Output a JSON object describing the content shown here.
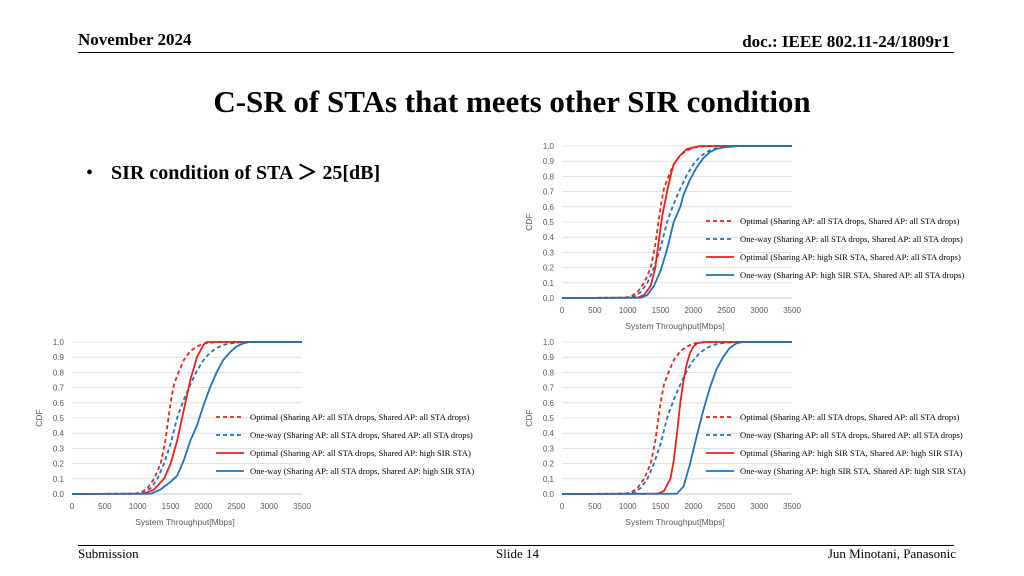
{
  "header": {
    "date": "November 2024",
    "doc": "doc.: IEEE 802.11-24/1809r1"
  },
  "slide_title": "C-SR of STAs that meets other SIR condition",
  "bullet": {
    "glyph": "•",
    "text": "SIR condition of STA ＞ 25[dB]"
  },
  "footer": {
    "left": "Submission",
    "center": "Slide 14",
    "right": "Jun Minotani, Panasonic"
  },
  "colors": {
    "optimal": "#e8201e",
    "oneway": "#1f72b8"
  },
  "chart_data": [
    {
      "type": "line",
      "xlabel": "System Throughput[Mbps]",
      "ylabel": "CDF",
      "xlim": [
        0,
        3500
      ],
      "ylim": [
        0,
        1
      ],
      "xticks": [
        "0",
        "500",
        "1000",
        "1500",
        "2000",
        "2500",
        "3000",
        "3500"
      ],
      "yticks": [
        "0.0",
        "0.1",
        "0.2",
        "0.3",
        "0.4",
        "0.5",
        "0.6",
        "0.7",
        "0.8",
        "0.9",
        "1.0"
      ],
      "grid": "horizontal",
      "legend": "right",
      "series": [
        {
          "name": "Optimal (Sharing AP: all STA drops, Shared AP: all STA drops)",
          "color": "#e8201e",
          "dash": true,
          "x": [
            0,
            950,
            1050,
            1150,
            1250,
            1350,
            1420,
            1500,
            1550,
            1620,
            1700,
            1800,
            1900,
            2000,
            2100,
            2200,
            3500
          ],
          "y": [
            0,
            0.002,
            0.01,
            0.04,
            0.1,
            0.2,
            0.35,
            0.6,
            0.72,
            0.8,
            0.88,
            0.94,
            0.97,
            0.99,
            0.995,
            1.0,
            1.0
          ]
        },
        {
          "name": "One-way (Sharing AP: all STA drops, Shared AP: all STA drops)",
          "color": "#1f72b8",
          "dash": true,
          "x": [
            0,
            1000,
            1100,
            1200,
            1300,
            1400,
            1500,
            1600,
            1700,
            1800,
            1900,
            2000,
            2100,
            2200,
            2300,
            2400,
            2600,
            3500
          ],
          "y": [
            0,
            0.002,
            0.01,
            0.04,
            0.1,
            0.2,
            0.33,
            0.5,
            0.62,
            0.72,
            0.81,
            0.88,
            0.93,
            0.96,
            0.98,
            0.99,
            1.0,
            1.0
          ]
        },
        {
          "name": "Optimal (Sharing AP: high SIR STA, Shared AP: all STA drops)",
          "color": "#e8201e",
          "dash": false,
          "x": [
            0,
            1150,
            1250,
            1350,
            1420,
            1480,
            1530,
            1600,
            1650,
            1700,
            1800,
            1900,
            2000,
            2100,
            3500
          ],
          "y": [
            0,
            0.002,
            0.02,
            0.08,
            0.2,
            0.4,
            0.55,
            0.7,
            0.8,
            0.88,
            0.94,
            0.98,
            0.99,
            1.0,
            1.0
          ]
        },
        {
          "name": "One-way (Sharing AP: high SIR STA, Shared AP: all STA drops)",
          "color": "#1f72b8",
          "dash": false,
          "x": [
            0,
            1200,
            1300,
            1400,
            1500,
            1600,
            1700,
            1800,
            1850,
            1950,
            2050,
            2150,
            2250,
            2350,
            2450,
            2550,
            2700,
            3500
          ],
          "y": [
            0,
            0.002,
            0.02,
            0.08,
            0.18,
            0.32,
            0.5,
            0.6,
            0.68,
            0.78,
            0.86,
            0.92,
            0.96,
            0.98,
            0.99,
            0.995,
            1.0,
            1.0
          ]
        }
      ]
    },
    {
      "type": "line",
      "xlabel": "System Throughput[Mbps]",
      "ylabel": "CDF",
      "xlim": [
        0,
        3500
      ],
      "ylim": [
        0,
        1
      ],
      "xticks": [
        "0",
        "500",
        "1000",
        "1500",
        "2000",
        "2500",
        "3000",
        "3500"
      ],
      "yticks": [
        "0.0",
        "0.1",
        "0.2",
        "0.3",
        "0.4",
        "0.5",
        "0.6",
        "0.7",
        "0.8",
        "0.9",
        "1.0"
      ],
      "grid": "horizontal",
      "legend": "right",
      "series": [
        {
          "name": "Optimal (Sharing AP: all STA drops, Shared AP: all STA drops)",
          "color": "#e8201e",
          "dash": true,
          "x": [
            0,
            950,
            1050,
            1150,
            1250,
            1350,
            1420,
            1500,
            1550,
            1620,
            1700,
            1800,
            1900,
            2000,
            2100,
            2200,
            3500
          ],
          "y": [
            0,
            0.002,
            0.01,
            0.04,
            0.1,
            0.2,
            0.35,
            0.6,
            0.72,
            0.8,
            0.88,
            0.94,
            0.97,
            0.99,
            0.995,
            1.0,
            1.0
          ]
        },
        {
          "name": "One-way (Sharing AP: all STA drops, Shared AP: all STA drops)",
          "color": "#1f72b8",
          "dash": true,
          "x": [
            0,
            1000,
            1100,
            1200,
            1300,
            1400,
            1500,
            1600,
            1700,
            1800,
            1900,
            2000,
            2100,
            2200,
            2300,
            2400,
            2600,
            3500
          ],
          "y": [
            0,
            0.002,
            0.01,
            0.04,
            0.1,
            0.2,
            0.33,
            0.5,
            0.62,
            0.72,
            0.81,
            0.88,
            0.93,
            0.96,
            0.98,
            0.99,
            1.0,
            1.0
          ]
        },
        {
          "name": "Optimal (Sharing AP: all STA drops, Shared AP: high SIR STA)",
          "color": "#e8201e",
          "dash": false,
          "x": [
            0,
            1100,
            1250,
            1400,
            1500,
            1600,
            1700,
            1800,
            1900,
            2000,
            2050,
            3500
          ],
          "y": [
            0,
            0.002,
            0.03,
            0.1,
            0.2,
            0.35,
            0.55,
            0.75,
            0.9,
            0.98,
            1.0,
            1.0
          ]
        },
        {
          "name": "One-way (Sharing AP: all STA drops, Shared AP: high SIR STA)",
          "color": "#1f72b8",
          "dash": false,
          "x": [
            0,
            1200,
            1350,
            1500,
            1600,
            1700,
            1800,
            1900,
            2000,
            2100,
            2200,
            2300,
            2400,
            2500,
            2600,
            2700,
            3500
          ],
          "y": [
            0,
            0.002,
            0.03,
            0.08,
            0.12,
            0.22,
            0.35,
            0.45,
            0.58,
            0.7,
            0.8,
            0.88,
            0.93,
            0.97,
            0.99,
            1.0,
            1.0
          ]
        }
      ]
    },
    {
      "type": "line",
      "xlabel": "System Throughput[Mbps]",
      "ylabel": "CDF",
      "xlim": [
        0,
        3500
      ],
      "ylim": [
        0,
        1
      ],
      "xticks": [
        "0",
        "500",
        "1000",
        "1500",
        "2000",
        "2500",
        "3000",
        "3500"
      ],
      "yticks": [
        "0.0",
        "0.1",
        "0.2",
        "0.3",
        "0.4",
        "0.5",
        "0.6",
        "0.7",
        "0.8",
        "0.9",
        "1.0"
      ],
      "grid": "horizontal",
      "legend": "right",
      "series": [
        {
          "name": "Optimal (Sharing AP: all STA drops, Shared AP: all STA drops)",
          "color": "#e8201e",
          "dash": true,
          "x": [
            0,
            950,
            1050,
            1150,
            1250,
            1350,
            1420,
            1500,
            1550,
            1620,
            1700,
            1800,
            1900,
            2000,
            2100,
            2200,
            3500
          ],
          "y": [
            0,
            0.002,
            0.01,
            0.04,
            0.1,
            0.2,
            0.35,
            0.6,
            0.72,
            0.8,
            0.88,
            0.94,
            0.97,
            0.99,
            0.995,
            1.0,
            1.0
          ]
        },
        {
          "name": "One-way (Sharing AP: all STA drops, Shared AP: all STA drops)",
          "color": "#1f72b8",
          "dash": true,
          "x": [
            0,
            1000,
            1100,
            1200,
            1300,
            1400,
            1500,
            1600,
            1700,
            1800,
            1900,
            2000,
            2100,
            2200,
            2300,
            2400,
            2600,
            3500
          ],
          "y": [
            0,
            0.002,
            0.01,
            0.04,
            0.1,
            0.2,
            0.33,
            0.5,
            0.62,
            0.72,
            0.81,
            0.88,
            0.93,
            0.96,
            0.98,
            0.99,
            1.0,
            1.0
          ]
        },
        {
          "name": "Optimal (Sharing AP: high SIR STA, Shared AP: high SIR STA)",
          "color": "#e8201e",
          "dash": false,
          "x": [
            0,
            1450,
            1550,
            1650,
            1700,
            1750,
            1800,
            1850,
            1900,
            1950,
            2000,
            2050,
            2100,
            2150,
            3500
          ],
          "y": [
            0,
            0.002,
            0.02,
            0.1,
            0.22,
            0.4,
            0.6,
            0.75,
            0.86,
            0.93,
            0.97,
            0.99,
            0.995,
            1.0,
            1.0
          ]
        },
        {
          "name": "One-way (Sharing AP: high SIR STA, Shared AP: high SIR STA)",
          "color": "#1f72b8",
          "dash": false,
          "x": [
            0,
            1750,
            1850,
            1950,
            2050,
            2150,
            2250,
            2350,
            2450,
            2550,
            2650,
            2750,
            3500
          ],
          "y": [
            0,
            0.002,
            0.05,
            0.2,
            0.38,
            0.55,
            0.7,
            0.82,
            0.9,
            0.96,
            0.99,
            1.0,
            1.0
          ]
        }
      ]
    }
  ]
}
